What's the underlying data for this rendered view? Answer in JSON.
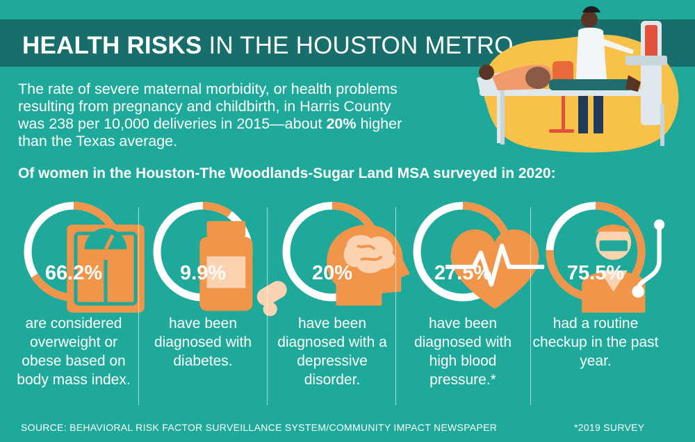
{
  "title": {
    "bold": "HEALTH RISKS",
    "light": "IN THE HOUSTON METRO"
  },
  "intro": {
    "text_before": "The rate of severe maternal morbidity, or health problems resulting from pregnancy and childbirth, in Harris County was 238 per 10,000 deliveries in 2015—about ",
    "highlight": "20%",
    "text_after": " higher than the Texas average."
  },
  "survey_heading": "Of women in the Houston-The Woodlands-Sugar Land MSA surveyed in 2020:",
  "stats": [
    {
      "value": "66.2%",
      "fraction": 0.662,
      "icon": "scale-icon",
      "description": "are considered overweight or obese based on body mass index."
    },
    {
      "value": "9.9%",
      "fraction": 0.099,
      "icon": "pill-bottle-icon",
      "description": "have been diagnosed with diabetes."
    },
    {
      "value": "20%",
      "fraction": 0.2,
      "icon": "brain-head-icon",
      "description": "have been diagnosed with a depressive disorder."
    },
    {
      "value": "27.5%",
      "fraction": 0.275,
      "icon": "heartbeat-icon",
      "description": "have been diagnosed with high blood pressure.*"
    },
    {
      "value": "75.5%",
      "fraction": 0.755,
      "icon": "doctor-stethoscope-icon",
      "description": "had a routine checkup in the past year."
    }
  ],
  "colors": {
    "background": "#1fa99a",
    "title_bar": "#176e6b",
    "accent": "#f0954a",
    "ring_base": "#ffffff"
  },
  "footer": {
    "source": "SOURCE: BEHAVIORAL RISK FACTOR SURVEILLANCE SYSTEM/COMMUNITY IMPACT NEWSPAPER",
    "note": "*2019 SURVEY"
  }
}
